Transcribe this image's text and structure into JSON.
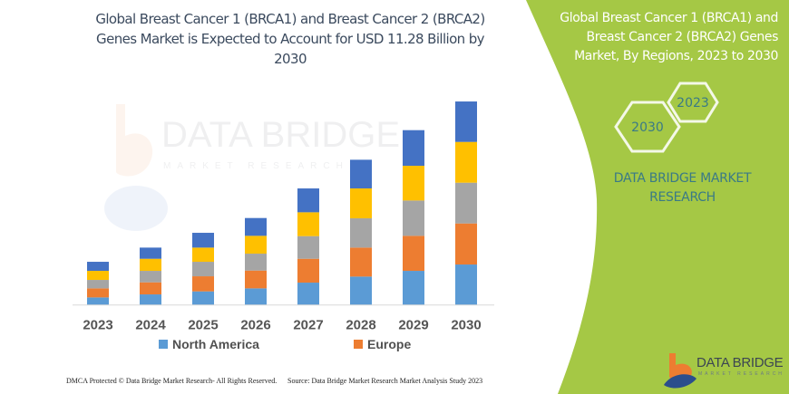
{
  "title_lines": [
    "Global Breast Cancer 1 (BRCA1) and Breast Cancer 2 (BRCA2)",
    "Genes Market is Expected to Account for USD 11.28 Billion by",
    "2030"
  ],
  "side_panel": {
    "title_lines": [
      "Global Breast Cancer 1 (BRCA1) and",
      "Breast Cancer 2 (BRCA2) Genes",
      "Market, By Regions, 2023 to 2030"
    ],
    "hex_labels": [
      "2023",
      "2030"
    ],
    "brand_lines": [
      "DATA BRIDGE MARKET",
      "RESEARCH"
    ],
    "logo": {
      "name": "DATA BRIDGE",
      "sub": "MARKET RESEARCH"
    },
    "color": "#a5c845"
  },
  "watermark": "DATA BRIDGE MARKET RESEARCH",
  "footer": {
    "left": "DMCA Protected © Data Bridge Market Research-  All Rights Reserved.",
    "right": "Source:  Data Bridge Market Research  Market Analysis Study 2023"
  },
  "chart_data": {
    "type": "bar",
    "stacked": true,
    "categories": [
      "2023",
      "2024",
      "2025",
      "2026",
      "2027",
      "2028",
      "2029",
      "2030"
    ],
    "series": [
      {
        "name": "North America",
        "color": "#5b9bd5",
        "values": [
          2.5,
          3.5,
          4.5,
          5.5,
          7.4,
          9.4,
          11.3,
          13.4
        ]
      },
      {
        "name": "Europe",
        "color": "#ed7d31",
        "values": [
          3.0,
          4.0,
          5.0,
          5.9,
          7.9,
          9.6,
          11.6,
          13.6
        ]
      },
      {
        "color": "#a5a5a5",
        "values": [
          2.8,
          3.8,
          4.8,
          5.6,
          7.5,
          9.7,
          11.7,
          13.5
        ]
      },
      {
        "color": "#ffc000",
        "values": [
          3.0,
          4.0,
          4.7,
          5.9,
          7.9,
          9.9,
          11.5,
          13.5
        ]
      },
      {
        "color": "#4472c4",
        "values": [
          3.0,
          3.7,
          4.9,
          5.9,
          7.9,
          9.5,
          11.8,
          13.4
        ]
      }
    ],
    "legend": [
      "North America",
      "Europe"
    ],
    "legend_position": "bottom",
    "y_axis_visible": false,
    "grid": false
  }
}
